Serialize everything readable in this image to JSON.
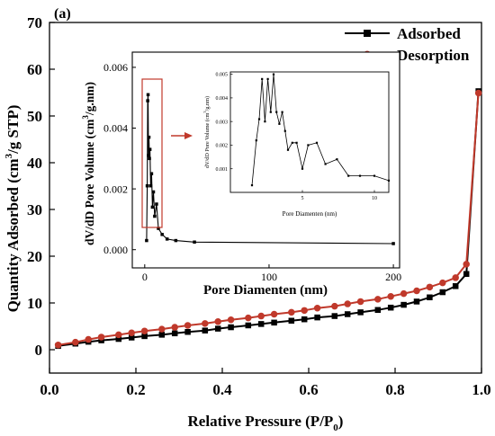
{
  "panel_label": "(a)",
  "chart_data": [
    {
      "type": "line",
      "xlabel": "Relative Pressure (P/P",
      "xlabel_sub": "0",
      "xlabel_end": ")",
      "ylabel": "Quantity Adsorbed (cm",
      "ylabel_sup": "3",
      "ylabel_end": "/g STP)",
      "xlim": [
        0.0,
        1.0
      ],
      "ylim": [
        -5,
        70
      ],
      "xticks": [
        0.0,
        0.2,
        0.4,
        0.6,
        0.8,
        1.0
      ],
      "yticks": [
        0,
        10,
        20,
        30,
        40,
        50,
        60,
        70
      ],
      "xtick_labels": [
        "0.0",
        "0.2",
        "0.4",
        "0.6",
        "0.8",
        "1.0"
      ],
      "ytick_labels": [
        "0",
        "10",
        "20",
        "30",
        "40",
        "50",
        "60",
        "70"
      ],
      "legend": "top-right",
      "series": [
        {
          "name": "Adsorbed",
          "color": "#000000",
          "marker": "square",
          "x": [
            0.02,
            0.06,
            0.09,
            0.12,
            0.16,
            0.19,
            0.22,
            0.26,
            0.29,
            0.32,
            0.36,
            0.39,
            0.42,
            0.46,
            0.49,
            0.52,
            0.56,
            0.59,
            0.62,
            0.66,
            0.69,
            0.72,
            0.76,
            0.79,
            0.82,
            0.85,
            0.88,
            0.91,
            0.94,
            0.965,
            0.993
          ],
          "y": [
            0.8,
            1.3,
            1.7,
            2.0,
            2.3,
            2.6,
            2.9,
            3.2,
            3.5,
            3.8,
            4.1,
            4.5,
            4.8,
            5.2,
            5.5,
            5.8,
            6.2,
            6.5,
            6.9,
            7.2,
            7.6,
            8.0,
            8.5,
            9.0,
            9.6,
            10.3,
            11.2,
            12.3,
            13.6,
            16.2,
            55.3
          ]
        },
        {
          "name": "Desorption",
          "color": "#c0392b",
          "marker": "circle",
          "x": [
            0.02,
            0.06,
            0.09,
            0.12,
            0.16,
            0.19,
            0.22,
            0.26,
            0.29,
            0.32,
            0.36,
            0.39,
            0.42,
            0.46,
            0.49,
            0.52,
            0.56,
            0.59,
            0.62,
            0.66,
            0.69,
            0.72,
            0.76,
            0.79,
            0.82,
            0.85,
            0.88,
            0.91,
            0.94,
            0.965,
            0.993
          ],
          "y": [
            1.0,
            1.6,
            2.2,
            2.7,
            3.2,
            3.6,
            4.0,
            4.4,
            4.8,
            5.2,
            5.6,
            6.0,
            6.4,
            6.8,
            7.2,
            7.6,
            8.0,
            8.4,
            8.9,
            9.3,
            9.8,
            10.3,
            10.8,
            11.4,
            12.0,
            12.6,
            13.4,
            14.3,
            15.4,
            18.3,
            54.9
          ]
        }
      ]
    },
    {
      "type": "line",
      "xlabel": "Pore Diamenten (nm)",
      "ylabel": "dV/dD Pore Volume (cm",
      "ylabel_sup": "3",
      "ylabel_end": "/g.nm)",
      "xlim": [
        -10,
        205
      ],
      "ylim": [
        -0.0006,
        0.0065
      ],
      "xticks": [
        0,
        100,
        200
      ],
      "yticks": [
        0.0,
        0.002,
        0.004,
        0.006
      ],
      "xtick_labels": [
        "0",
        "100",
        "200"
      ],
      "ytick_labels": [
        "0.000",
        "0.002",
        "0.004",
        "0.006"
      ],
      "series": [
        {
          "color": "#000000",
          "marker": "square",
          "x": [
            1.5,
            2.0,
            2.4,
            2.7,
            3.0,
            3.4,
            3.8,
            4.2,
            4.8,
            5.5,
            6.2,
            7.0,
            8.0,
            9.5,
            11,
            14,
            18,
            25,
            40,
            200
          ],
          "y": [
            0.0003,
            0.0021,
            0.0049,
            0.0051,
            0.0031,
            0.0037,
            0.003,
            0.0033,
            0.0021,
            0.0025,
            0.0014,
            0.0019,
            0.0011,
            0.0015,
            0.0007,
            0.0005,
            0.00035,
            0.0003,
            0.00025,
            0.0002
          ]
        }
      ]
    },
    {
      "type": "line",
      "xlabel": "Pore Diamenten (nm)",
      "ylabel": "dV/dD Pore Volume (cm",
      "ylabel_sup": "3",
      "ylabel_end": "/g.nm)",
      "xlim": [
        0,
        11
      ],
      "ylim": [
        0.0,
        0.0051
      ],
      "xticks": [
        5,
        10
      ],
      "yticks": [
        0.001,
        0.002,
        0.003,
        0.004,
        0.005
      ],
      "xtick_labels": [
        "5",
        "10"
      ],
      "ytick_labels": [
        "0.001",
        "0.002",
        "0.003",
        "0.004",
        "0.005"
      ],
      "series": [
        {
          "color": "#000000",
          "marker": "square",
          "x": [
            1.5,
            1.8,
            2.0,
            2.2,
            2.4,
            2.6,
            2.8,
            3.0,
            3.2,
            3.4,
            3.6,
            3.8,
            4.0,
            4.3,
            4.6,
            5.0,
            5.4,
            6.0,
            6.6,
            7.4,
            8.2,
            9.0,
            10.0,
            11.0
          ],
          "y": [
            0.0003,
            0.0022,
            0.0031,
            0.0048,
            0.003,
            0.0048,
            0.0034,
            0.005,
            0.0034,
            0.0029,
            0.0034,
            0.0026,
            0.0018,
            0.0021,
            0.0021,
            0.001,
            0.002,
            0.0021,
            0.0012,
            0.0014,
            0.0007,
            0.0007,
            0.0007,
            0.0005
          ]
        }
      ]
    }
  ]
}
